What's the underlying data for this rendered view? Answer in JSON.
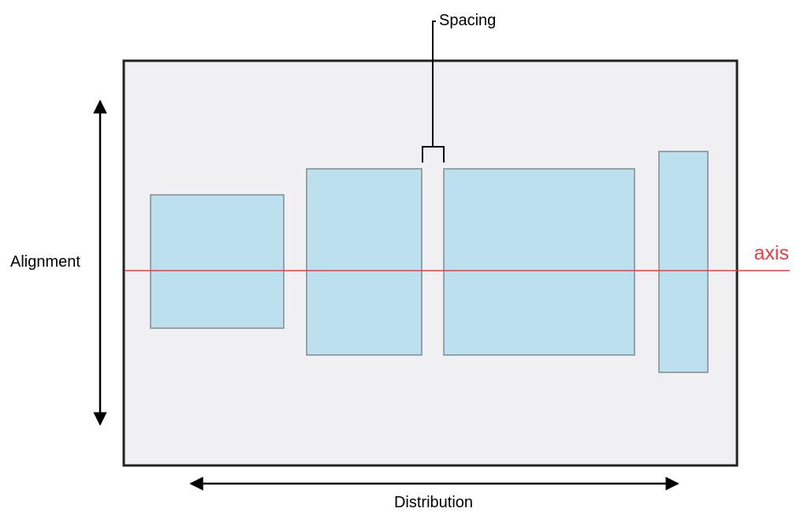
{
  "labels": {
    "spacing": "Spacing",
    "alignment": "Alignment",
    "distribution": "Distribution",
    "axis": "axis"
  },
  "colors": {
    "container_fill": "#f0f0f2",
    "container_stroke": "#222222",
    "view_fill": "#bde0ee",
    "view_stroke": "#7f8a8f",
    "axis_line": "#ec3b3f",
    "arrow": "#000000"
  }
}
